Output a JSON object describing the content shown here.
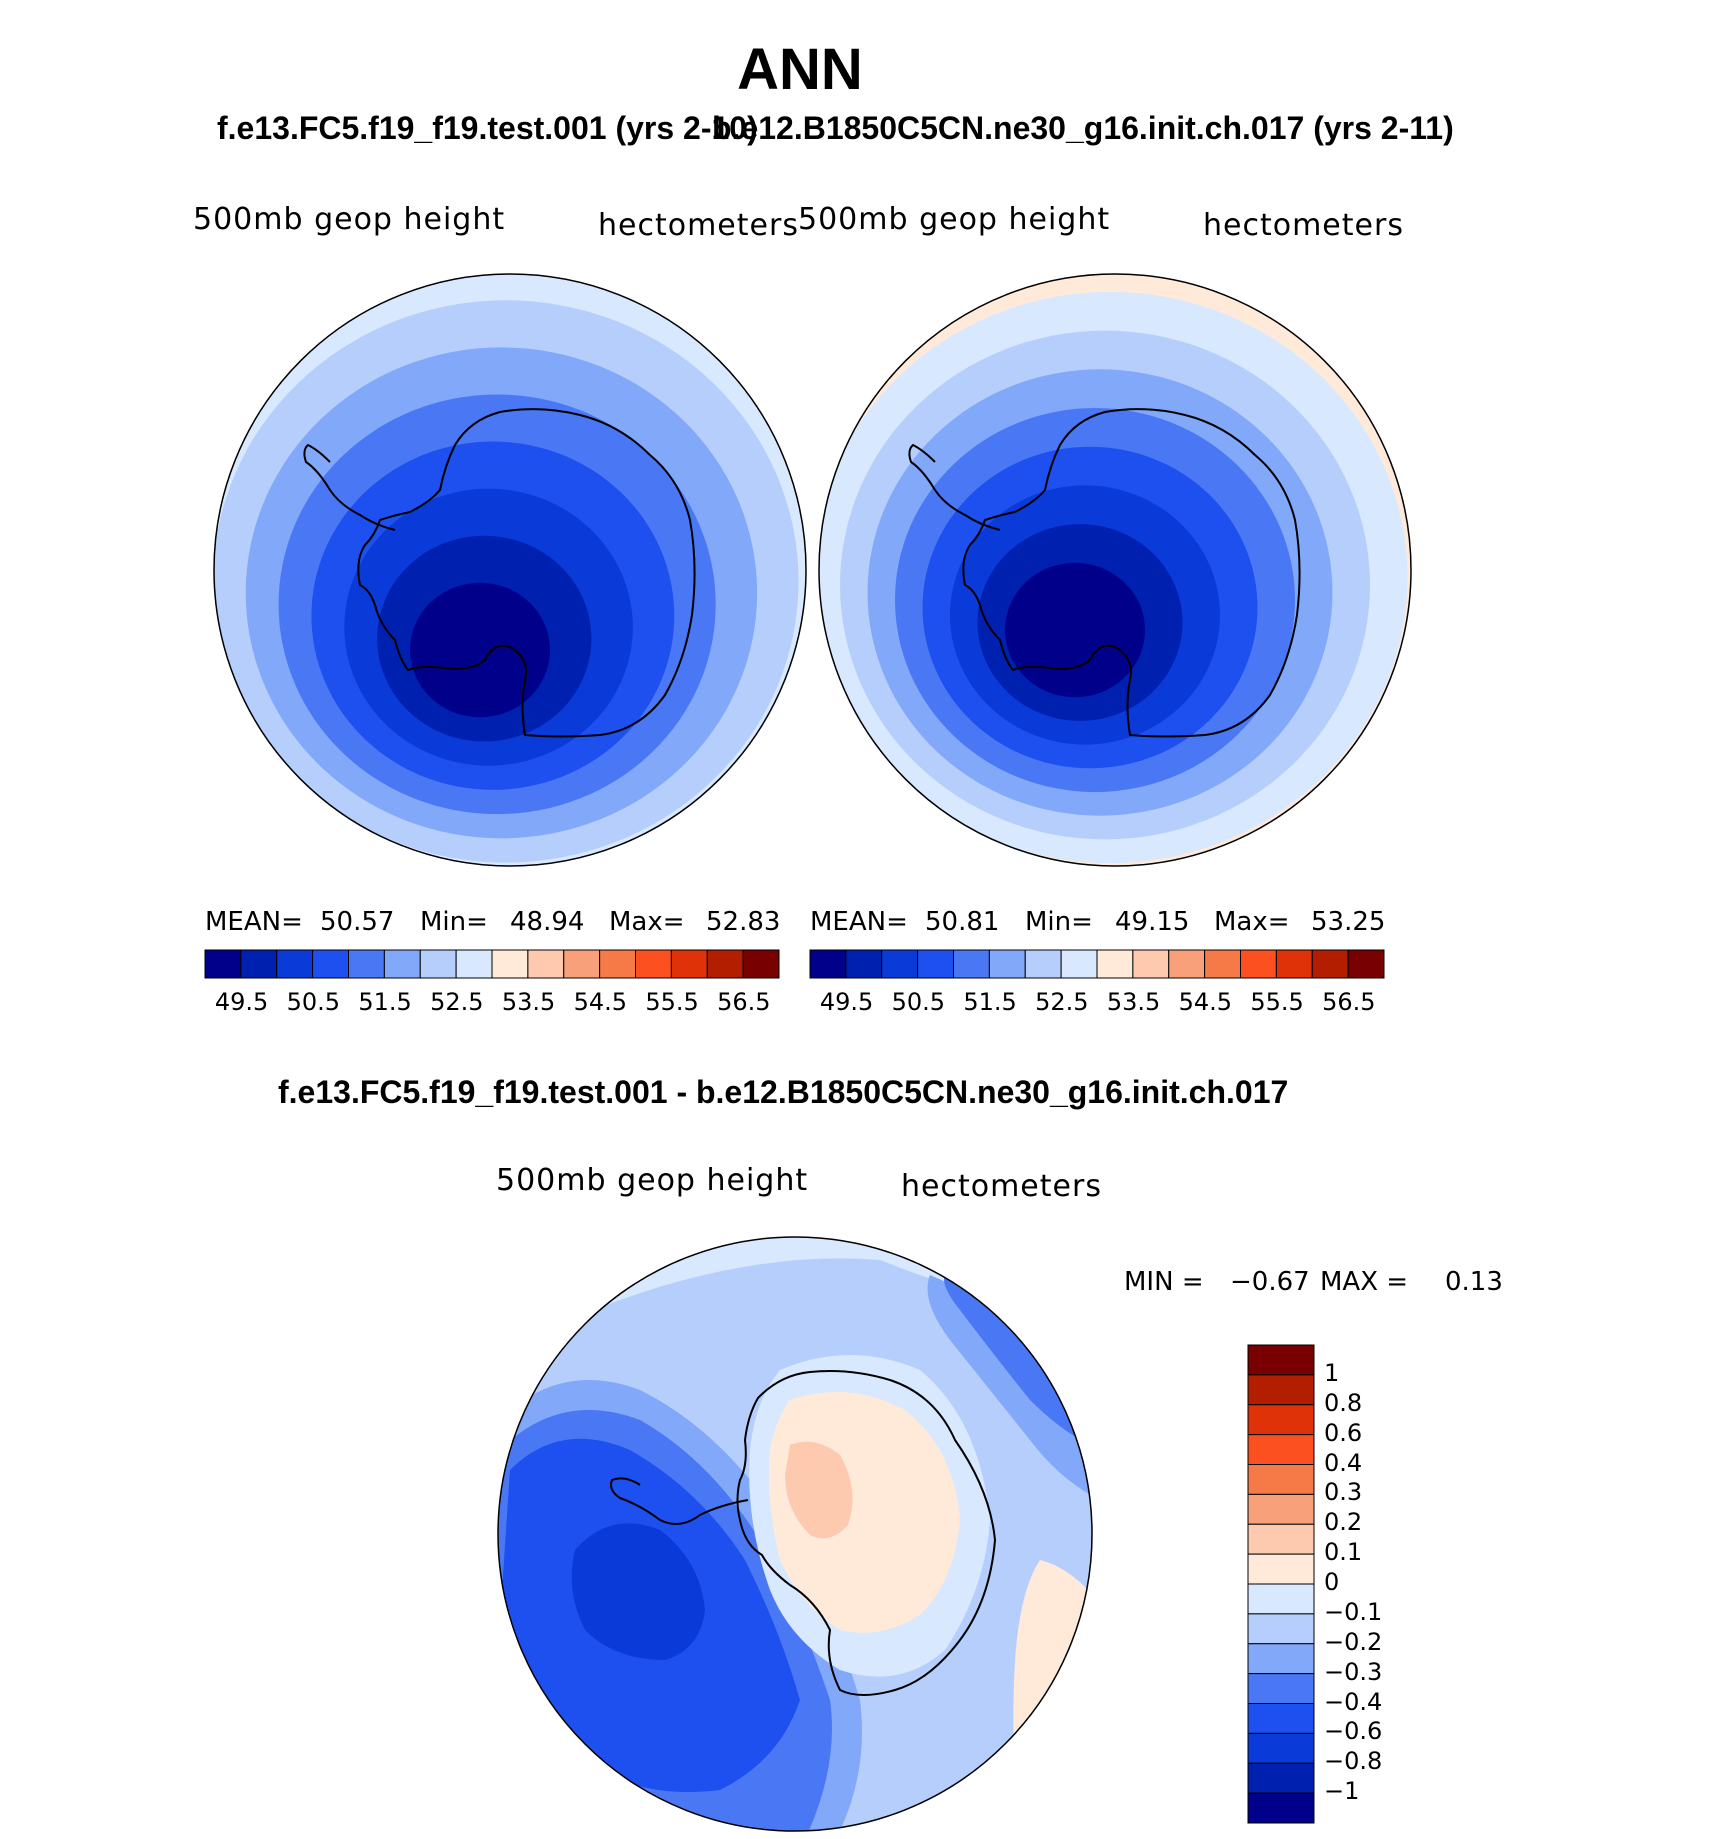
{
  "header": {
    "season": "ANN",
    "case_test_title": "f.e13.FC5.f19_f19.test.001 (yrs 2-10)",
    "case_ctrl_title": "b.e12.B1850C5CN.ne30_g16.init.ch.017 (yrs 2-11)",
    "diff_title": "f.e13.FC5.f19_f19.test.001 - b.e12.B1850C5CN.ne30_g16.init.ch.017"
  },
  "panels": {
    "test": {
      "variable": "500mb  geop  height",
      "units": "hectometers",
      "stats": {
        "mean_label": "MEAN=",
        "mean": "50.57",
        "min_label": "Min=",
        "min": "48.94",
        "max_label": "Max=",
        "max": "52.83"
      }
    },
    "ctrl": {
      "variable": "500mb  geop  height",
      "units": "hectometers",
      "stats": {
        "mean_label": "MEAN=",
        "mean": "50.81",
        "min_label": "Min=",
        "min": "49.15",
        "max_label": "Max=",
        "max": "53.25"
      }
    },
    "diff": {
      "variable": "500mb  geop  height",
      "units": "hectometers",
      "stats": {
        "min_label": "MIN =",
        "min": "−0.67",
        "max_label": "MAX =",
        "max": "0.13"
      }
    }
  },
  "colorbars": {
    "abs_levels": [
      "49.5",
      "50.5",
      "51.5",
      "52.5",
      "53.5",
      "54.5",
      "55.5",
      "56.5"
    ],
    "abs_colors": [
      "#00008a",
      "#0020b0",
      "#0a3ad8",
      "#1e50f0",
      "#4a78f4",
      "#82a8fa",
      "#b6cefc",
      "#d8e8ff",
      "#ffeada",
      "#fdcab0",
      "#f8a07a",
      "#f57a48",
      "#fc5020",
      "#e03208",
      "#b41e00",
      "#780000"
    ],
    "diff_levels": [
      "1",
      "0.8",
      "0.6",
      "0.4",
      "0.3",
      "0.2",
      "0.1",
      "0",
      "−0.1",
      "−0.2",
      "−0.3",
      "−0.4",
      "−0.6",
      "−0.8",
      "−1"
    ],
    "diff_colors": [
      "#780000",
      "#b41e00",
      "#e03208",
      "#fc5020",
      "#f57a48",
      "#f8a07a",
      "#fdcab0",
      "#ffeada",
      "#d8e8ff",
      "#b6cefc",
      "#82a8fa",
      "#4a78f4",
      "#1e50f0",
      "#0a3ad8",
      "#0020b0",
      "#00008a"
    ]
  },
  "map_colors": {
    "test_rings": [
      "#d8e8ff",
      "#b6cefc",
      "#82a8fa",
      "#4a78f4",
      "#1e50f0",
      "#0a3ad8",
      "#0020b0",
      "#00008a"
    ],
    "ctrl_rings": [
      "#ffeada",
      "#d8e8ff",
      "#b6cefc",
      "#82a8fa",
      "#4a78f4",
      "#1e50f0",
      "#0a3ad8",
      "#0020b0",
      "#00008a"
    ],
    "diff_base": "#b6cefc",
    "coast": "#000000"
  }
}
